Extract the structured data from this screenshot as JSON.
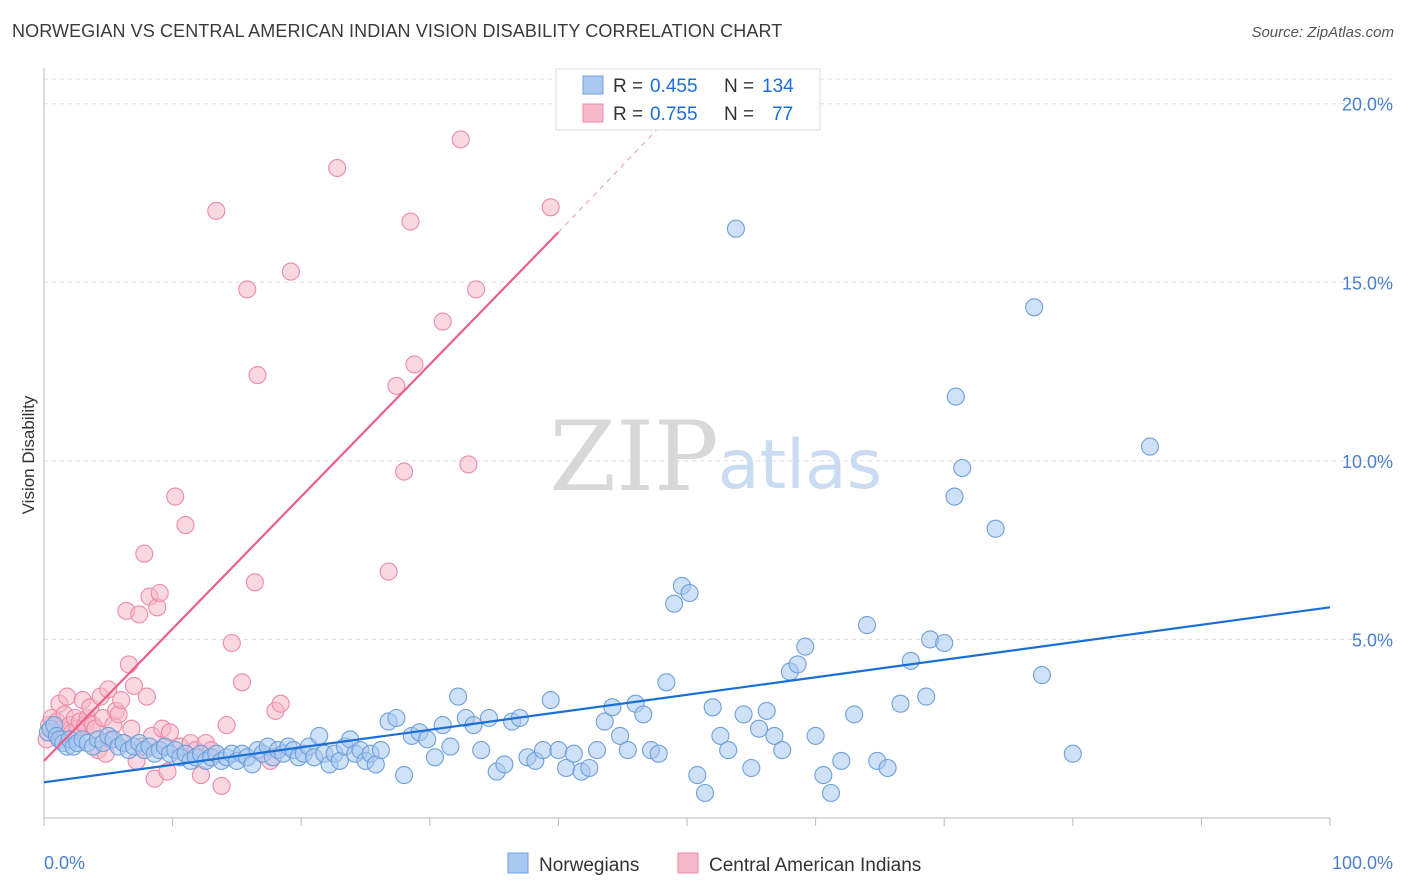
{
  "title": "NORWEGIAN VS CENTRAL AMERICAN INDIAN VISION DISABILITY CORRELATION CHART",
  "source": "Source: ZipAtlas.com",
  "watermark": {
    "zip": "ZIP",
    "atlas": "atlas"
  },
  "colors": {
    "blue_fill": "#a8c8f0",
    "blue_stroke": "#6f9fd8",
    "blue_line": "#1a6fd6",
    "pink_fill": "#f6b8cb",
    "pink_stroke": "#ec8aa8",
    "pink_line": "#e8608a",
    "tick_label": "#4a7fd0",
    "grid": "#dddddd"
  },
  "legend_top": {
    "rows": [
      {
        "r_label": "R =",
        "r_value": "0.455",
        "n_label": "N =",
        "n_value": "134"
      },
      {
        "r_label": "R =",
        "r_value": "0.755",
        "n_label": "N =",
        "n_value": "77"
      }
    ]
  },
  "legend_bottom": {
    "items": [
      "Norwegians",
      "Central American Indians"
    ]
  },
  "chart_data": {
    "type": "scatter",
    "title": "NORWEGIAN VS CENTRAL AMERICAN INDIAN VISION DISABILITY CORRELATION CHART",
    "xlabel": "",
    "ylabel": "Vision Disability",
    "xlim": [
      0,
      100
    ],
    "ylim": [
      0,
      21
    ],
    "x_tick_labels": [
      "0.0%",
      "100.0%"
    ],
    "y_ticks": [
      5,
      10,
      15,
      20
    ],
    "y_tick_labels": [
      "5.0%",
      "10.0%",
      "15.0%",
      "20.0%"
    ],
    "grid": true,
    "legend_position": "top-center",
    "series": [
      {
        "name": "Norwegians",
        "R": 0.455,
        "N": 134,
        "trend": {
          "x0": 0,
          "y0": 1.0,
          "x1": 100,
          "y1": 5.9
        },
        "points": [
          [
            0.3,
            2.4
          ],
          [
            0.5,
            2.5
          ],
          [
            0.8,
            2.6
          ],
          [
            1.0,
            2.3
          ],
          [
            1.2,
            2.2
          ],
          [
            1.5,
            2.1
          ],
          [
            1.8,
            2.0
          ],
          [
            2.0,
            2.2
          ],
          [
            2.3,
            2.0
          ],
          [
            2.6,
            2.1
          ],
          [
            3.0,
            2.2
          ],
          [
            3.4,
            2.1
          ],
          [
            3.8,
            2.0
          ],
          [
            4.2,
            2.2
          ],
          [
            4.6,
            2.1
          ],
          [
            5.0,
            2.3
          ],
          [
            5.4,
            2.2
          ],
          [
            5.8,
            2.0
          ],
          [
            6.2,
            2.1
          ],
          [
            6.6,
            1.9
          ],
          [
            7.0,
            2.0
          ],
          [
            7.4,
            2.1
          ],
          [
            7.8,
            1.9
          ],
          [
            8.2,
            2.0
          ],
          [
            8.6,
            1.8
          ],
          [
            9.0,
            1.9
          ],
          [
            9.4,
            2.0
          ],
          [
            9.8,
            1.8
          ],
          [
            10.2,
            1.9
          ],
          [
            10.6,
            1.7
          ],
          [
            11.0,
            1.8
          ],
          [
            11.4,
            1.6
          ],
          [
            11.8,
            1.7
          ],
          [
            12.2,
            1.8
          ],
          [
            12.6,
            1.6
          ],
          [
            13.0,
            1.7
          ],
          [
            13.4,
            1.8
          ],
          [
            13.8,
            1.6
          ],
          [
            14.2,
            1.7
          ],
          [
            14.6,
            1.8
          ],
          [
            15.0,
            1.6
          ],
          [
            15.4,
            1.8
          ],
          [
            15.8,
            1.7
          ],
          [
            16.2,
            1.5
          ],
          [
            16.6,
            1.9
          ],
          [
            17.0,
            1.8
          ],
          [
            17.4,
            2.0
          ],
          [
            17.8,
            1.7
          ],
          [
            18.2,
            1.9
          ],
          [
            18.6,
            1.8
          ],
          [
            19.0,
            2.0
          ],
          [
            19.4,
            1.9
          ],
          [
            19.8,
            1.7
          ],
          [
            20.2,
            1.8
          ],
          [
            20.6,
            2.0
          ],
          [
            21.0,
            1.7
          ],
          [
            21.4,
            2.3
          ],
          [
            21.8,
            1.8
          ],
          [
            22.2,
            1.5
          ],
          [
            22.6,
            1.8
          ],
          [
            23.0,
            1.6
          ],
          [
            23.4,
            2.0
          ],
          [
            23.8,
            2.2
          ],
          [
            24.2,
            1.8
          ],
          [
            24.6,
            1.9
          ],
          [
            25.0,
            1.6
          ],
          [
            25.4,
            1.8
          ],
          [
            25.8,
            1.5
          ],
          [
            26.2,
            1.9
          ],
          [
            26.8,
            2.7
          ],
          [
            27.4,
            2.8
          ],
          [
            28.0,
            1.2
          ],
          [
            28.6,
            2.3
          ],
          [
            29.2,
            2.4
          ],
          [
            29.8,
            2.2
          ],
          [
            30.4,
            1.7
          ],
          [
            31.0,
            2.6
          ],
          [
            31.6,
            2.0
          ],
          [
            32.2,
            3.4
          ],
          [
            32.8,
            2.8
          ],
          [
            33.4,
            2.6
          ],
          [
            34.0,
            1.9
          ],
          [
            34.6,
            2.8
          ],
          [
            35.2,
            1.3
          ],
          [
            35.8,
            1.5
          ],
          [
            36.4,
            2.7
          ],
          [
            37.0,
            2.8
          ],
          [
            37.6,
            1.7
          ],
          [
            38.2,
            1.6
          ],
          [
            38.8,
            1.9
          ],
          [
            39.4,
            3.3
          ],
          [
            40.0,
            1.9
          ],
          [
            40.6,
            1.4
          ],
          [
            41.2,
            1.8
          ],
          [
            41.8,
            1.3
          ],
          [
            42.4,
            1.4
          ],
          [
            43.0,
            1.9
          ],
          [
            43.6,
            2.7
          ],
          [
            44.2,
            3.1
          ],
          [
            44.8,
            2.3
          ],
          [
            45.4,
            1.9
          ],
          [
            46.0,
            3.2
          ],
          [
            46.6,
            2.9
          ],
          [
            47.2,
            1.9
          ],
          [
            47.8,
            1.8
          ],
          [
            48.4,
            3.8
          ],
          [
            49.0,
            6.0
          ],
          [
            49.6,
            6.5
          ],
          [
            50.2,
            6.3
          ],
          [
            50.8,
            1.2
          ],
          [
            51.4,
            0.7
          ],
          [
            52.0,
            3.1
          ],
          [
            52.6,
            2.3
          ],
          [
            53.2,
            1.9
          ],
          [
            53.8,
            16.5
          ],
          [
            54.4,
            2.9
          ],
          [
            55.0,
            1.4
          ],
          [
            55.6,
            2.5
          ],
          [
            56.2,
            3.0
          ],
          [
            56.8,
            2.3
          ],
          [
            57.4,
            1.9
          ],
          [
            58.0,
            4.1
          ],
          [
            58.6,
            4.3
          ],
          [
            59.2,
            4.8
          ],
          [
            60.0,
            2.3
          ],
          [
            60.6,
            1.2
          ],
          [
            61.2,
            0.7
          ],
          [
            62.0,
            1.6
          ],
          [
            63.0,
            2.9
          ],
          [
            64.0,
            5.4
          ],
          [
            64.8,
            1.6
          ],
          [
            65.6,
            1.4
          ],
          [
            66.6,
            3.2
          ],
          [
            67.4,
            4.4
          ],
          [
            68.6,
            3.4
          ],
          [
            68.9,
            5.0
          ],
          [
            70.0,
            4.9
          ],
          [
            70.8,
            9.0
          ],
          [
            70.9,
            11.8
          ],
          [
            71.4,
            9.8
          ],
          [
            74.0,
            8.1
          ],
          [
            77.0,
            14.3
          ],
          [
            77.6,
            4.0
          ],
          [
            80.0,
            1.8
          ],
          [
            86.0,
            10.4
          ]
        ]
      },
      {
        "name": "Central American Indians",
        "R": 0.755,
        "N": 77,
        "trend": {
          "x0": 0,
          "y0": 1.6,
          "x1": 40,
          "y1": 16.4,
          "dash_to_x": 48,
          "dash_to_y": 19.4
        },
        "points": [
          [
            0.2,
            2.2
          ],
          [
            0.4,
            2.6
          ],
          [
            0.6,
            2.8
          ],
          [
            0.8,
            2.4
          ],
          [
            1.0,
            2.7
          ],
          [
            1.2,
            3.2
          ],
          [
            1.4,
            2.5
          ],
          [
            1.6,
            2.9
          ],
          [
            1.8,
            3.4
          ],
          [
            2.0,
            2.6
          ],
          [
            2.2,
            2.4
          ],
          [
            2.4,
            2.8
          ],
          [
            2.6,
            2.5
          ],
          [
            2.8,
            2.7
          ],
          [
            3.0,
            3.3
          ],
          [
            3.2,
            2.6
          ],
          [
            3.4,
            2.8
          ],
          [
            3.6,
            3.1
          ],
          [
            3.8,
            2.6
          ],
          [
            4.0,
            2.5
          ],
          [
            4.2,
            1.9
          ],
          [
            4.4,
            3.4
          ],
          [
            4.6,
            2.8
          ],
          [
            4.8,
            1.8
          ],
          [
            5.0,
            3.6
          ],
          [
            5.2,
            2.2
          ],
          [
            5.4,
            2.6
          ],
          [
            5.6,
            3.0
          ],
          [
            5.8,
            2.9
          ],
          [
            6.0,
            3.3
          ],
          [
            6.2,
            2.1
          ],
          [
            6.4,
            5.8
          ],
          [
            6.6,
            4.3
          ],
          [
            6.8,
            2.5
          ],
          [
            7.0,
            3.7
          ],
          [
            7.2,
            1.6
          ],
          [
            7.4,
            5.7
          ],
          [
            7.6,
            2.0
          ],
          [
            7.8,
            7.4
          ],
          [
            8.0,
            3.4
          ],
          [
            8.2,
            6.2
          ],
          [
            8.4,
            2.3
          ],
          [
            8.6,
            1.1
          ],
          [
            8.8,
            5.9
          ],
          [
            9.0,
            6.3
          ],
          [
            9.2,
            2.5
          ],
          [
            9.4,
            2.0
          ],
          [
            9.6,
            1.3
          ],
          [
            9.8,
            2.4
          ],
          [
            10.2,
            9.0
          ],
          [
            10.6,
            2.0
          ],
          [
            11.0,
            8.2
          ],
          [
            11.4,
            2.1
          ],
          [
            11.8,
            1.9
          ],
          [
            12.2,
            1.2
          ],
          [
            12.6,
            2.1
          ],
          [
            13.0,
            1.9
          ],
          [
            13.4,
            17.0
          ],
          [
            13.8,
            0.9
          ],
          [
            14.2,
            2.6
          ],
          [
            14.6,
            4.9
          ],
          [
            15.4,
            3.8
          ],
          [
            15.8,
            14.8
          ],
          [
            16.4,
            6.6
          ],
          [
            16.6,
            12.4
          ],
          [
            17.6,
            1.6
          ],
          [
            18.0,
            3.0
          ],
          [
            18.4,
            3.2
          ],
          [
            19.2,
            15.3
          ],
          [
            22.8,
            18.2
          ],
          [
            26.8,
            6.9
          ],
          [
            27.4,
            12.1
          ],
          [
            28.0,
            9.7
          ],
          [
            28.5,
            16.7
          ],
          [
            28.8,
            12.7
          ],
          [
            31.0,
            13.9
          ],
          [
            32.4,
            19.0
          ],
          [
            33.0,
            9.9
          ],
          [
            33.6,
            14.8
          ],
          [
            39.4,
            17.1
          ]
        ]
      }
    ]
  }
}
